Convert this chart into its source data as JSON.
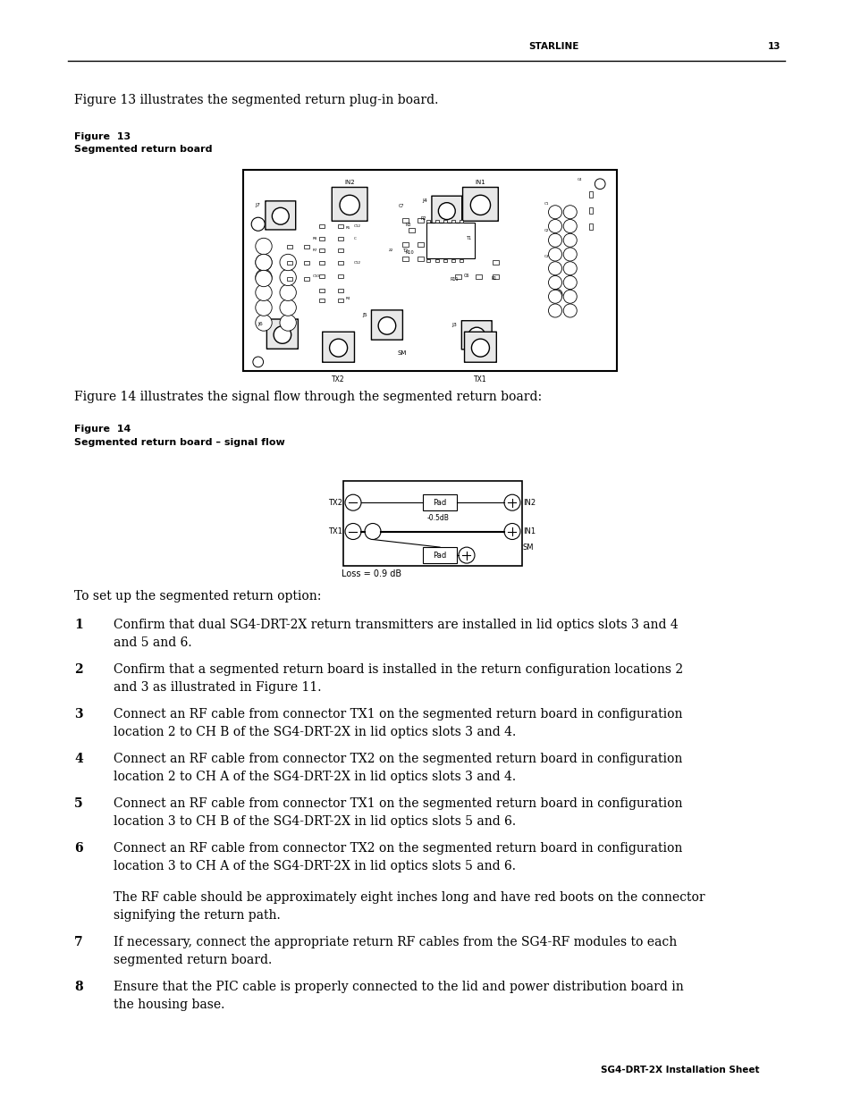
{
  "page_width": 9.54,
  "page_height": 12.35,
  "dpi": 100,
  "bg_color": "#ffffff",
  "header_text": "STARLINE",
  "header_page": "13",
  "footer_text": "SG4-DRT-2X Installation Sheet",
  "intro_text1": "Figure 13 illustrates the segmented return plug-in board.",
  "fig13_label": "Figure  13",
  "fig13_sublabel": "Segmented return board",
  "intro_text2": "Figure 14 illustrates the signal flow through the segmented return board:",
  "fig14_label": "Figure  14",
  "fig14_sublabel": "Segmented return board – signal flow",
  "setup_intro": "To set up the segmented return option:",
  "steps": [
    {
      "num": "1",
      "text": "Confirm that dual SG4-DRT-2X return transmitters are installed in lid optics slots 3 and 4\nand 5 and 6."
    },
    {
      "num": "2",
      "text": "Confirm that a segmented return board is installed in the return configuration locations 2\nand 3 as illustrated in Figure 11."
    },
    {
      "num": "3",
      "text": "Connect an RF cable from connector TX1 on the segmented return board in configuration\nlocation 2 to CH B of the SG4-DRT-2X in lid optics slots 3 and 4."
    },
    {
      "num": "4",
      "text": "Connect an RF cable from connector TX2 on the segmented return board in configuration\nlocation 2 to CH A of the SG4-DRT-2X in lid optics slots 3 and 4."
    },
    {
      "num": "5",
      "text": "Connect an RF cable from connector TX1 on the segmented return board in configuration\nlocation 3 to CH B of the SG4-DRT-2X in lid optics slots 5 and 6."
    },
    {
      "num": "6",
      "text": "Connect an RF cable from connector TX2 on the segmented return board in configuration\nlocation 3 to CH A of the SG4-DRT-2X in lid optics slots 5 and 6."
    },
    {
      "num": "7",
      "text": "If necessary, connect the appropriate return RF cables from the SG4-RF modules to each\nsegmented return board."
    },
    {
      "num": "8",
      "text": "Ensure that the PIC cable is properly connected to the lid and power distribution board in\nthe housing base."
    }
  ],
  "rf_cable_note": "The RF cable should be approximately eight inches long and have red boots on the connector\nsignifying the return path."
}
